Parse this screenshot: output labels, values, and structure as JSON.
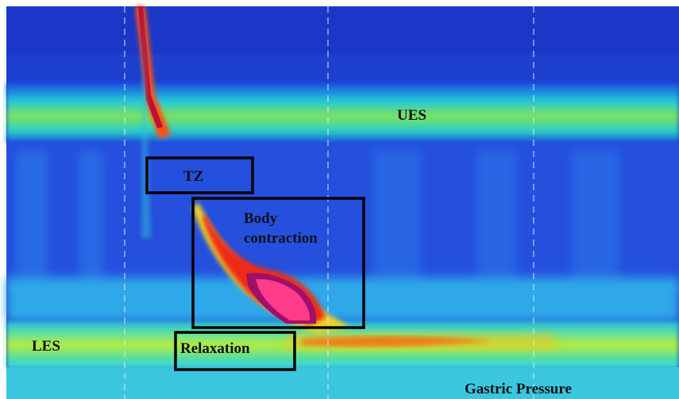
{
  "labels": {
    "ues": "UES",
    "tz": "TZ",
    "body_contraction": [
      "Body",
      "contraction"
    ],
    "les": "LES",
    "relaxation": "Relaxation",
    "gastric_pressure": "Gastric Pressure"
  }
}
